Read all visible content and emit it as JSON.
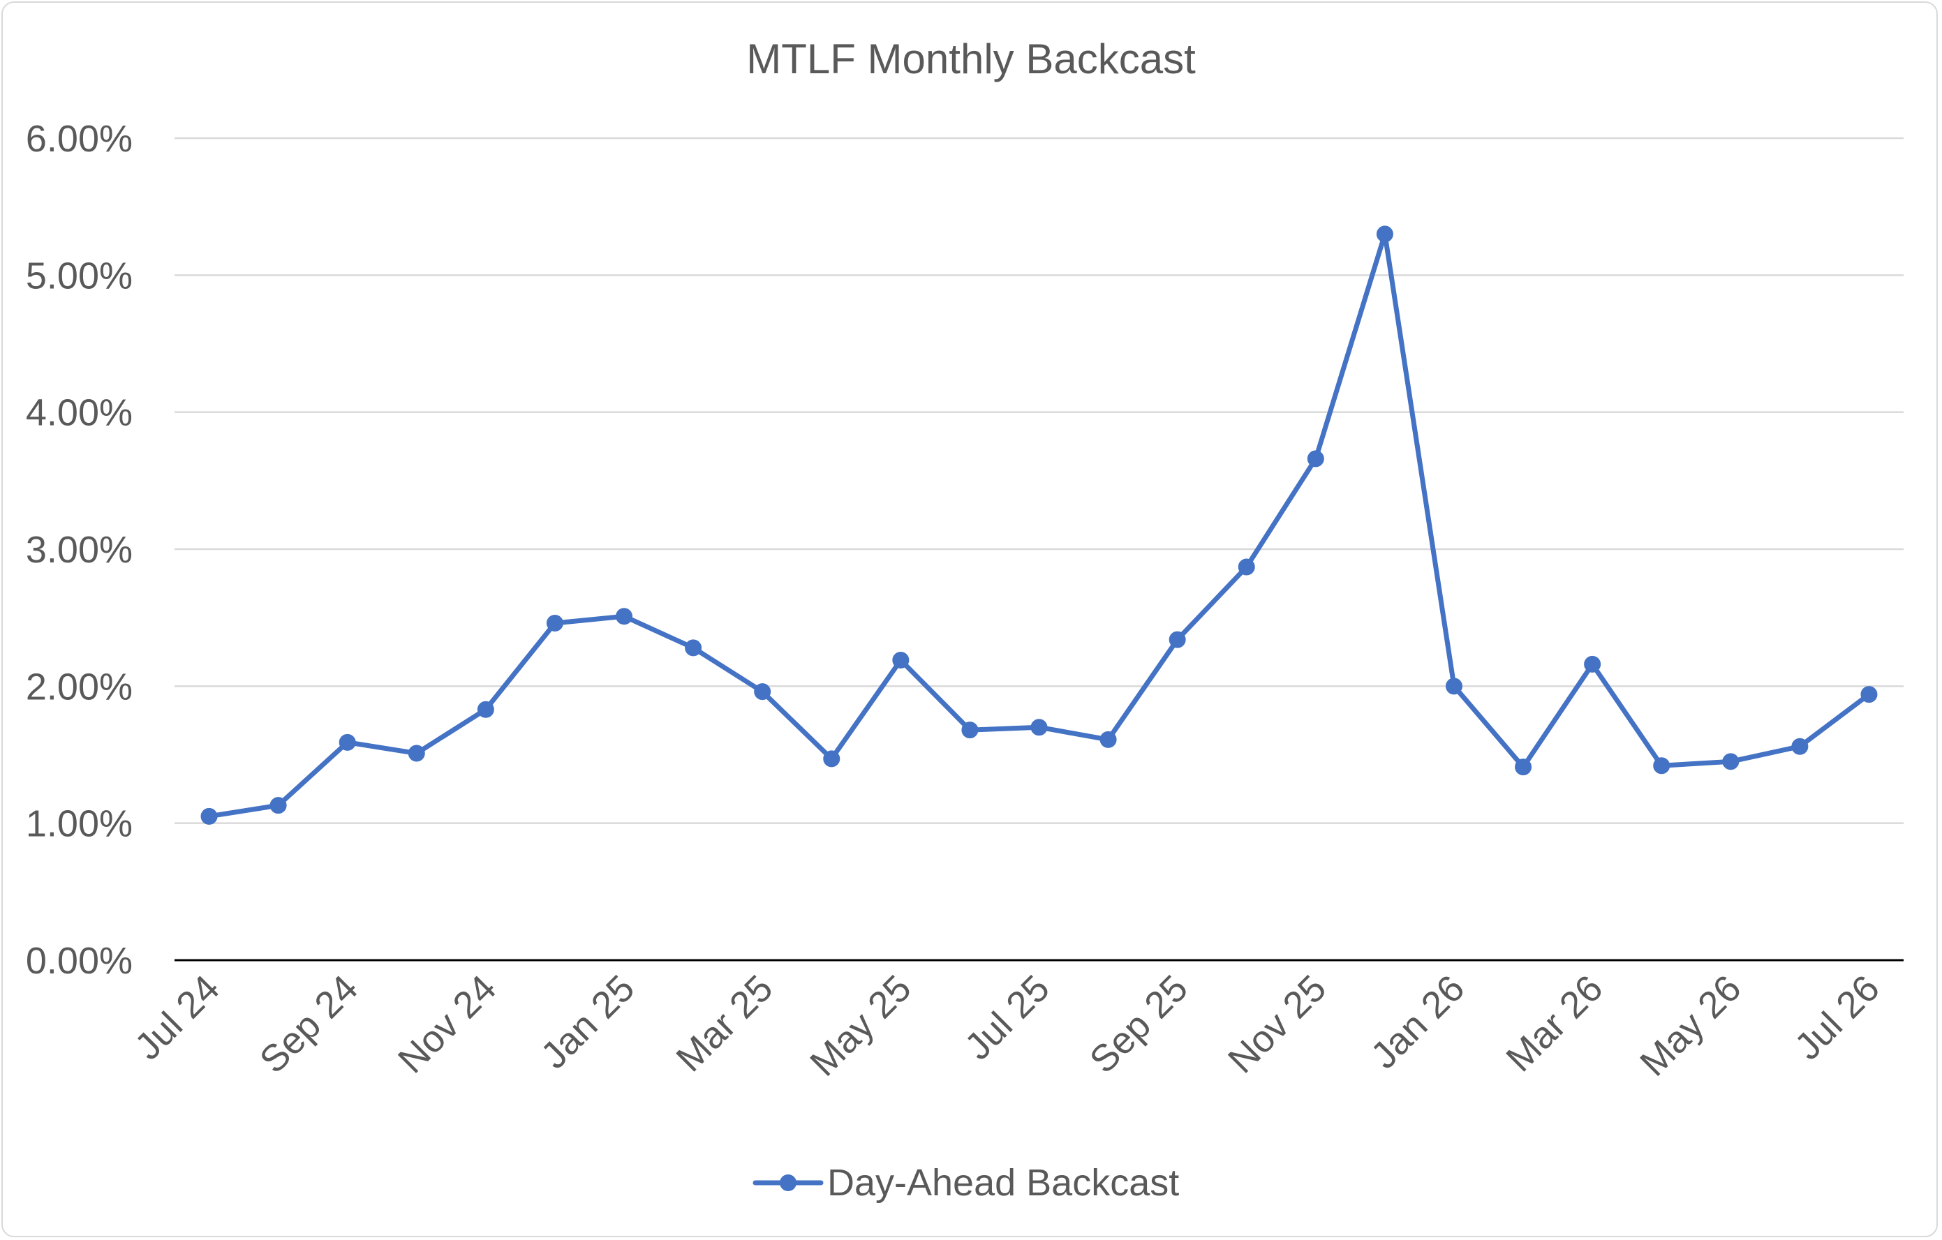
{
  "chart_data": {
    "type": "line",
    "title": "MTLF Monthly Backcast",
    "xlabel": "",
    "ylabel": "",
    "ylim": [
      0,
      0.06
    ],
    "yticks": [
      0,
      0.01,
      0.02,
      0.03,
      0.04,
      0.05,
      0.06
    ],
    "ytick_labels": [
      "0.00%",
      "1.00%",
      "2.00%",
      "3.00%",
      "4.00%",
      "5.00%",
      "6.00%"
    ],
    "categories": [
      "Jul 24",
      "Aug 24",
      "Sep 24",
      "Oct 24",
      "Nov 24",
      "Dec 24",
      "Jan 25",
      "Feb 25",
      "Mar 25",
      "Apr 25",
      "May 25",
      "Jun 25",
      "Jul 25",
      "Aug 25",
      "Sep 25",
      "Oct 25",
      "Nov 25",
      "Dec 25",
      "Jan 26",
      "Feb 26",
      "Mar 26",
      "Apr 26",
      "May 26",
      "Jun 26",
      "Jul 26"
    ],
    "xtick_labels": [
      "Jul 24",
      "Sep 24",
      "Nov 24",
      "Jan 25",
      "Mar 25",
      "May 25",
      "Jul 25",
      "Sep 25",
      "Nov 25",
      "Jan 26",
      "Mar 26",
      "May 26",
      "Jul 26"
    ],
    "series": [
      {
        "name": "Day-Ahead Backcast",
        "color": "#4472c4",
        "values": [
          0.0105,
          0.0113,
          0.0159,
          0.0151,
          0.0183,
          0.0246,
          0.0251,
          0.0228,
          0.0196,
          0.0147,
          0.0219,
          0.0168,
          0.017,
          0.0161,
          0.0234,
          0.0287,
          0.0366,
          0.053,
          0.02,
          0.0141,
          0.0216,
          0.0142,
          0.0145,
          0.0156,
          0.0194
        ]
      }
    ],
    "grid": true,
    "legend_position": "bottom"
  }
}
